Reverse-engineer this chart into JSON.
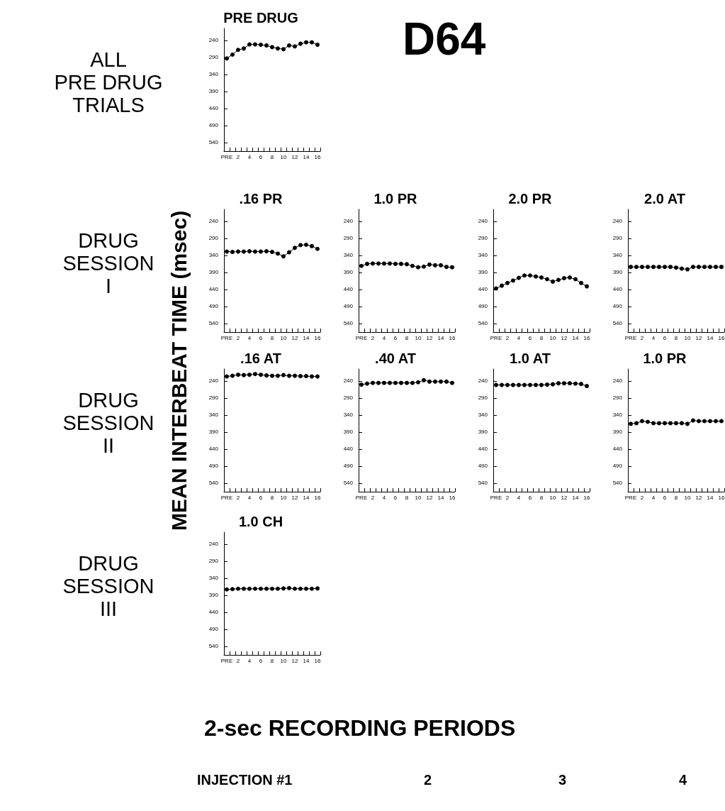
{
  "chart_data": [
    {
      "type": "other",
      "title": "D64",
      "ylabel": "MEAN INTERBEAT TIME (msec)",
      "xlabel": "2-sec RECORDING PERIODS",
      "annotations": [
        "ALL\nPRE DRUG\nTRIALS",
        "DRUG\nSESSION\nI",
        "DRUG\nSESSION\nII",
        "DRUG\nSESSION\nIII",
        "INJECTION #1",
        "2",
        "3",
        "4"
      ]
    },
    {
      "type": "line",
      "title": "PRE DRUG",
      "categories": [
        "PRE",
        null,
        "2",
        null,
        "4",
        null,
        "6",
        null,
        "8",
        null,
        "10",
        null,
        "12",
        null,
        "14",
        null,
        "16"
      ],
      "series": [
        {
          "color": "#000000",
          "values": [
            293,
            282,
            268,
            264,
            252,
            252,
            253,
            255,
            260,
            264,
            266,
            255,
            258,
            250,
            246,
            246,
            253
          ]
        }
      ],
      "ylim": [
        565,
        205
      ],
      "yticks": [
        240,
        290,
        340,
        390,
        440,
        490,
        540
      ],
      "grid": false,
      "marker": "circle",
      "line_style": "solid"
    },
    {
      "type": "line",
      "title": ".16 PR",
      "categories": [
        "PRE",
        null,
        "2",
        null,
        "4",
        null,
        "6",
        null,
        "8",
        null,
        "10",
        null,
        "12",
        null,
        "14",
        null,
        "16"
      ],
      "series": [
        {
          "color": "#000000",
          "values": [
            329,
            330,
            329,
            329,
            328,
            329,
            329,
            328,
            330,
            335,
            343,
            331,
            318,
            310,
            309,
            313,
            321
          ]
        }
      ],
      "ylim": [
        565,
        205
      ],
      "yticks": [
        240,
        290,
        340,
        390,
        440,
        490,
        540
      ],
      "grid": false,
      "marker": "circle",
      "line_style": "solid"
    },
    {
      "type": "line",
      "title": "1.0 PR",
      "categories": [
        "PRE",
        null,
        "2",
        null,
        "4",
        null,
        "6",
        null,
        "8",
        null,
        "10",
        null,
        "12",
        null,
        "14",
        null,
        "16"
      ],
      "series": [
        {
          "color": "#000000",
          "values": [
            371,
            365,
            364,
            364,
            364,
            364,
            365,
            365,
            366,
            371,
            375,
            373,
            367,
            369,
            369,
            374,
            375
          ]
        }
      ],
      "ylim": [
        565,
        205
      ],
      "yticks": [
        240,
        290,
        340,
        390,
        440,
        490,
        540
      ],
      "grid": false,
      "marker": "circle",
      "line_style": "solid"
    },
    {
      "type": "line",
      "title": "2.0 PR",
      "categories": [
        "PRE",
        null,
        "2",
        null,
        "4",
        null,
        "6",
        null,
        "8",
        null,
        "10",
        null,
        "12",
        null,
        "14",
        null,
        "16"
      ],
      "series": [
        {
          "color": "#000000",
          "values": [
            437,
            429,
            421,
            414,
            406,
            399,
            399,
            402,
            405,
            410,
            417,
            412,
            407,
            405,
            410,
            421,
            431
          ]
        }
      ],
      "ylim": [
        565,
        205
      ],
      "yticks": [
        240,
        290,
        340,
        390,
        440,
        490,
        540
      ],
      "grid": false,
      "marker": "circle",
      "line_style": "solid"
    },
    {
      "type": "line",
      "title": "2.0 AT",
      "categories": [
        "PRE",
        null,
        "2",
        null,
        "4",
        null,
        "6",
        null,
        "8",
        null,
        "10",
        null,
        "12",
        null,
        "14",
        null,
        "16"
      ],
      "series": [
        {
          "color": "#000000",
          "values": [
            374,
            374,
            374,
            374,
            374,
            374,
            374,
            374,
            376,
            379,
            381,
            374,
            374,
            374,
            374,
            374,
            374
          ]
        }
      ],
      "ylim": [
        565,
        205
      ],
      "yticks": [
        240,
        290,
        340,
        390,
        440,
        490,
        540
      ],
      "grid": false,
      "marker": "circle",
      "line_style": "solid"
    },
    {
      "type": "line",
      "title": ".16 AT",
      "categories": [
        "PRE",
        null,
        "2",
        null,
        "4",
        null,
        "6",
        null,
        "8",
        null,
        "10",
        null,
        "12",
        null,
        "14",
        null,
        "16"
      ],
      "series": [
        {
          "color": "#000000",
          "values": [
            227,
            225,
            222,
            223,
            222,
            220,
            222,
            224,
            225,
            225,
            223,
            225,
            225,
            226,
            226,
            227,
            227
          ]
        }
      ],
      "ylim": [
        565,
        205
      ],
      "yticks": [
        240,
        290,
        340,
        390,
        440,
        490,
        540
      ],
      "grid": false,
      "marker": "circle",
      "line_style": "solid"
    },
    {
      "type": "line",
      "title": ".40 AT",
      "categories": [
        "PRE",
        null,
        "2",
        null,
        "4",
        null,
        "6",
        null,
        "8",
        null,
        "10",
        null,
        "12",
        null,
        "14",
        null,
        "16"
      ],
      "series": [
        {
          "color": "#000000",
          "values": [
            251,
            248,
            246,
            246,
            246,
            246,
            246,
            246,
            246,
            246,
            244,
            238,
            242,
            242,
            242,
            242,
            246
          ]
        }
      ],
      "ylim": [
        565,
        205
      ],
      "yticks": [
        240,
        290,
        340,
        390,
        440,
        490,
        540
      ],
      "grid": false,
      "marker": "circle",
      "line_style": "solid"
    },
    {
      "type": "line",
      "title": "1.0 AT",
      "categories": [
        "PRE",
        null,
        "2",
        null,
        "4",
        null,
        "6",
        null,
        "8",
        null,
        "10",
        null,
        "12",
        null,
        "14",
        null,
        "16"
      ],
      "series": [
        {
          "color": "#000000",
          "values": [
            252,
            252,
            252,
            252,
            252,
            252,
            252,
            252,
            252,
            251,
            250,
            247,
            247,
            247,
            248,
            249,
            255
          ]
        }
      ],
      "ylim": [
        565,
        205
      ],
      "yticks": [
        240,
        290,
        340,
        390,
        440,
        490,
        540
      ],
      "grid": false,
      "marker": "circle",
      "line_style": "solid"
    },
    {
      "type": "line",
      "title": "1.0 PR",
      "categories": [
        "PRE",
        null,
        "2",
        null,
        "4",
        null,
        "6",
        null,
        "8",
        null,
        "10",
        null,
        "12",
        null,
        "14",
        null,
        "16"
      ],
      "series": [
        {
          "color": "#000000",
          "values": [
            366,
            364,
            358,
            360,
            364,
            364,
            364,
            364,
            364,
            364,
            366,
            356,
            358,
            358,
            358,
            358,
            358
          ]
        }
      ],
      "ylim": [
        565,
        205
      ],
      "yticks": [
        240,
        290,
        340,
        390,
        440,
        490,
        540
      ],
      "grid": false,
      "marker": "circle",
      "line_style": "solid"
    },
    {
      "type": "line",
      "title": "1.0 CH",
      "categories": [
        "PRE",
        null,
        "2",
        null,
        "4",
        null,
        "6",
        null,
        "8",
        null,
        "10",
        null,
        "12",
        null,
        "14",
        null,
        "16"
      ],
      "series": [
        {
          "color": "#000000",
          "values": [
            373,
            372,
            371,
            371,
            371,
            371,
            371,
            371,
            371,
            371,
            370,
            369,
            371,
            371,
            371,
            371,
            370
          ]
        }
      ],
      "ylim": [
        565,
        205
      ],
      "yticks": [
        240,
        290,
        340,
        390,
        440,
        490,
        540
      ],
      "grid": false,
      "marker": "circle",
      "line_style": "solid"
    }
  ]
}
